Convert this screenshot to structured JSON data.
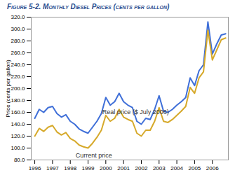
{
  "chart_data": {
    "type": "line",
    "title": "Figure 5-2. Monthly Diesel Prices (cents per gallon)",
    "y_label": "Price (cents per gallon)",
    "x": [
      1996,
      1996.25,
      1996.5,
      1996.75,
      1997,
      1997.25,
      1997.5,
      1997.75,
      1998,
      1998.25,
      1998.5,
      1998.75,
      1999,
      1999.25,
      1999.5,
      1999.75,
      2000,
      2000.25,
      2000.5,
      2000.75,
      2001,
      2001.25,
      2001.5,
      2001.75,
      2002,
      2002.25,
      2002.5,
      2002.75,
      2003,
      2003.25,
      2003.5,
      2003.75,
      2004,
      2004.25,
      2004.5,
      2004.75,
      2005,
      2005.25,
      2005.5,
      2005.75,
      2006,
      2006.25,
      2006.5,
      2006.75
    ],
    "series": [
      {
        "name": "Real price ($ July 2006)",
        "color": "#3f6fd8",
        "values": [
          150,
          165,
          160,
          168,
          170,
          158,
          152,
          156,
          145,
          140,
          132,
          128,
          125,
          135,
          145,
          158,
          185,
          172,
          178,
          192,
          178,
          172,
          168,
          145,
          140,
          150,
          148,
          165,
          188,
          162,
          160,
          165,
          172,
          178,
          185,
          218,
          205,
          230,
          240,
          312,
          258,
          275,
          290,
          292
        ]
      },
      {
        "name": "Current price",
        "color": "#d6a92a",
        "values": [
          120,
          133,
          128,
          135,
          138,
          127,
          122,
          126,
          116,
          112,
          105,
          102,
          100,
          108,
          118,
          130,
          155,
          145,
          150,
          165,
          152,
          148,
          145,
          125,
          120,
          130,
          130,
          145,
          168,
          145,
          143,
          148,
          155,
          162,
          170,
          202,
          192,
          218,
          228,
          298,
          248,
          265,
          282,
          285
        ]
      }
    ],
    "annotations": [
      {
        "text": "Real price ($ July 2006)",
        "x": 1999.8,
        "y": 160
      },
      {
        "text": "Current price",
        "x": 1998.3,
        "y": 88
      }
    ],
    "xlim": [
      1995.8,
      2006.9
    ],
    "xticks": [
      1996,
      1997,
      1998,
      1999,
      2000,
      2001,
      2002,
      2003,
      2004,
      2005,
      2006
    ],
    "ylim": [
      80,
      320
    ],
    "yticks": [
      {
        "value": 80,
        "label": "80.0"
      },
      {
        "value": 100,
        "label": "100.0"
      },
      {
        "value": 120,
        "label": "120.0"
      },
      {
        "value": 140,
        "label": "140.0"
      },
      {
        "value": 160,
        "label": "160.0"
      },
      {
        "value": 180,
        "label": "180.0"
      },
      {
        "value": 200,
        "label": "200.0"
      },
      {
        "value": 220,
        "label": "220.0"
      },
      {
        "value": 240,
        "label": "240.0"
      },
      {
        "value": 260,
        "label": "260.0"
      },
      {
        "value": 280,
        "label": "280.0"
      },
      {
        "value": 300,
        "label": "300.0"
      },
      {
        "value": 320,
        "label": "320.0"
      }
    ],
    "grid": false
  }
}
